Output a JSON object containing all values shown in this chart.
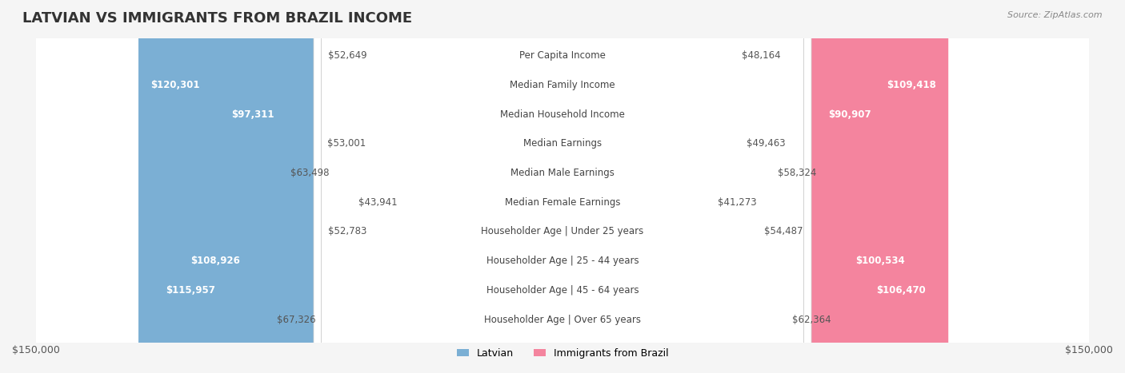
{
  "title": "LATVIAN VS IMMIGRANTS FROM BRAZIL INCOME",
  "source": "Source: ZipAtlas.com",
  "categories": [
    "Per Capita Income",
    "Median Family Income",
    "Median Household Income",
    "Median Earnings",
    "Median Male Earnings",
    "Median Female Earnings",
    "Householder Age | Under 25 years",
    "Householder Age | 25 - 44 years",
    "Householder Age | 45 - 64 years",
    "Householder Age | Over 65 years"
  ],
  "latvian_values": [
    52649,
    120301,
    97311,
    53001,
    63498,
    43941,
    52783,
    108926,
    115957,
    67326
  ],
  "brazil_values": [
    48164,
    109418,
    90907,
    49463,
    58324,
    41273,
    54487,
    100534,
    106470,
    62364
  ],
  "latvian_color": "#7bafd4",
  "brazil_color": "#f4849e",
  "max_value": 150000,
  "background_color": "#f5f5f5",
  "row_bg_color": "#e8e8e8",
  "row_bg_light": "#f0f0f0",
  "label_bg_color": "#ffffff",
  "title_fontsize": 13,
  "axis_label_fontsize": 9,
  "bar_label_fontsize": 8.5,
  "category_fontsize": 8.5,
  "legend_fontsize": 9
}
